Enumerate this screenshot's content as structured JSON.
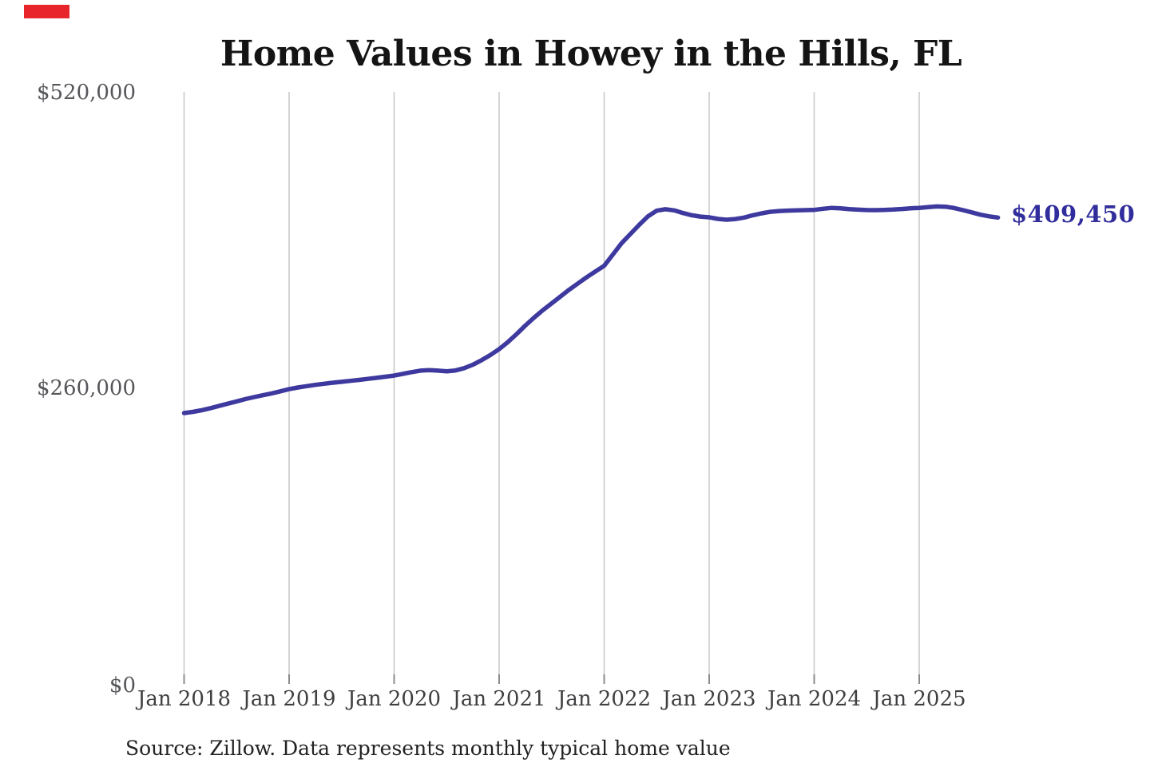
{
  "page": {
    "title": "Home Values in Howey in the Hills, FL",
    "source_note": "Source: Zillow. Data represents monthly typical home value",
    "end_label": "$409,450"
  },
  "colors": {
    "line": "#3e399e",
    "end_label": "#312d9d",
    "grid": "#c7c7c7",
    "tick": "#8c8c8c",
    "title": "#141414",
    "y_label": "#55565a",
    "x_label": "#3f3f42",
    "source": "#222222",
    "red_marker": "#e9252c"
  },
  "chart_data": {
    "type": "line",
    "title": "Home Values in Howey in the Hills, FL",
    "series_name": "Monthly typical home value",
    "grid": "vertical-only",
    "legend": false,
    "ylim": [
      0,
      520000
    ],
    "yticks": [
      {
        "label": "$520,000",
        "value": 520000
      },
      {
        "label": "$260,000",
        "value": 260000
      },
      {
        "label": "$0",
        "value": 0
      }
    ],
    "xticks": [
      "Jan 2018",
      "Jan 2019",
      "Jan 2020",
      "Jan 2021",
      "Jan 2022",
      "Jan 2023",
      "Jan 2024",
      "Jan 2025"
    ],
    "last_value_label": "$409,450",
    "last_value": 409450,
    "x": [
      "2018-01",
      "2018-02",
      "2018-03",
      "2018-04",
      "2018-05",
      "2018-06",
      "2018-07",
      "2018-08",
      "2018-09",
      "2018-10",
      "2018-11",
      "2018-12",
      "2019-01",
      "2019-02",
      "2019-03",
      "2019-04",
      "2019-05",
      "2019-06",
      "2019-07",
      "2019-08",
      "2019-09",
      "2019-10",
      "2019-11",
      "2019-12",
      "2020-01",
      "2020-02",
      "2020-03",
      "2020-04",
      "2020-05",
      "2020-06",
      "2020-07",
      "2020-08",
      "2020-09",
      "2020-10",
      "2020-11",
      "2020-12",
      "2021-01",
      "2021-02",
      "2021-03",
      "2021-04",
      "2021-05",
      "2021-06",
      "2021-07",
      "2021-08",
      "2021-09",
      "2021-10",
      "2021-11",
      "2021-12",
      "2022-01",
      "2022-02",
      "2022-03",
      "2022-04",
      "2022-05",
      "2022-06",
      "2022-07",
      "2022-08",
      "2022-09",
      "2022-10",
      "2022-11",
      "2022-12",
      "2023-01",
      "2023-02",
      "2023-03",
      "2023-04",
      "2023-05",
      "2023-06",
      "2023-07",
      "2023-08",
      "2023-09",
      "2023-10",
      "2023-11",
      "2023-12",
      "2024-01",
      "2024-02",
      "2024-03",
      "2024-04",
      "2024-05",
      "2024-06",
      "2024-07",
      "2024-08",
      "2024-09",
      "2024-10",
      "2024-11",
      "2024-12",
      "2025-01",
      "2025-02",
      "2025-03",
      "2025-04",
      "2025-05",
      "2025-06",
      "2025-07",
      "2025-08",
      "2025-09",
      "2025-10"
    ],
    "values": [
      237500,
      238600,
      240000,
      241800,
      243800,
      245800,
      247800,
      249800,
      251600,
      253200,
      254800,
      256600,
      258500,
      260000,
      261200,
      262300,
      263300,
      264200,
      265000,
      265800,
      266700,
      267600,
      268500,
      269500,
      270500,
      272000,
      273500,
      274800,
      275300,
      274800,
      274300,
      275000,
      277000,
      280000,
      284000,
      288500,
      293700,
      300000,
      307000,
      314500,
      321500,
      328000,
      334000,
      340000,
      346000,
      351500,
      357000,
      362000,
      367000,
      377000,
      387000,
      395000,
      403000,
      410500,
      415500,
      416800,
      415800,
      413500,
      411500,
      410300,
      409700,
      408300,
      407600,
      408200,
      409500,
      411500,
      413200,
      414500,
      415200,
      415600,
      415800,
      416000,
      416200,
      417200,
      418000,
      417600,
      416900,
      416400,
      416100,
      416000,
      416200,
      416500,
      417000,
      417600,
      418000,
      418600,
      419200,
      419000,
      417800,
      416000,
      414000,
      412000,
      410500,
      409450
    ]
  }
}
